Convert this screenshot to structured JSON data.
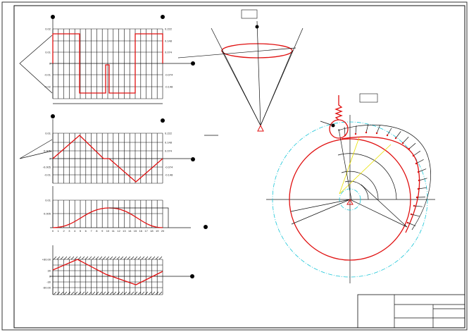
{
  "drawing": {
    "colors": {
      "profile": "#e01010",
      "base_circle": "#19c6d8",
      "aux_lines": "#e8e000",
      "lines": "#111111"
    },
    "chart1": {
      "y_ticks": [
        "0.02",
        "0.01",
        "0",
        "-0.01",
        "-0.02"
      ],
      "right_ticks": [
        "0.222",
        "0.148",
        "0.074",
        "-0.074",
        "-0.148"
      ]
    },
    "chart2": {
      "y_ticks": [
        "0.01",
        "0.005",
        "0",
        "-0.005",
        "-0.01"
      ],
      "right_ticks": [
        "0.222",
        "0.148",
        "0.074",
        "-0.074",
        "-0.148"
      ]
    },
    "chart3": {
      "y_ticks": [
        "0.01",
        "0.005"
      ],
      "x_ticks": [
        "0",
        "1",
        "2",
        "3",
        "4",
        "5",
        "6",
        "7",
        "8",
        "9",
        "10",
        "11",
        "12",
        "13",
        "14",
        "15",
        "16",
        "17",
        "18",
        "19",
        "20"
      ]
    },
    "chart4": {
      "y_ticks": [
        "+60.00",
        "30",
        "0",
        "-30",
        "-60.00"
      ]
    }
  }
}
